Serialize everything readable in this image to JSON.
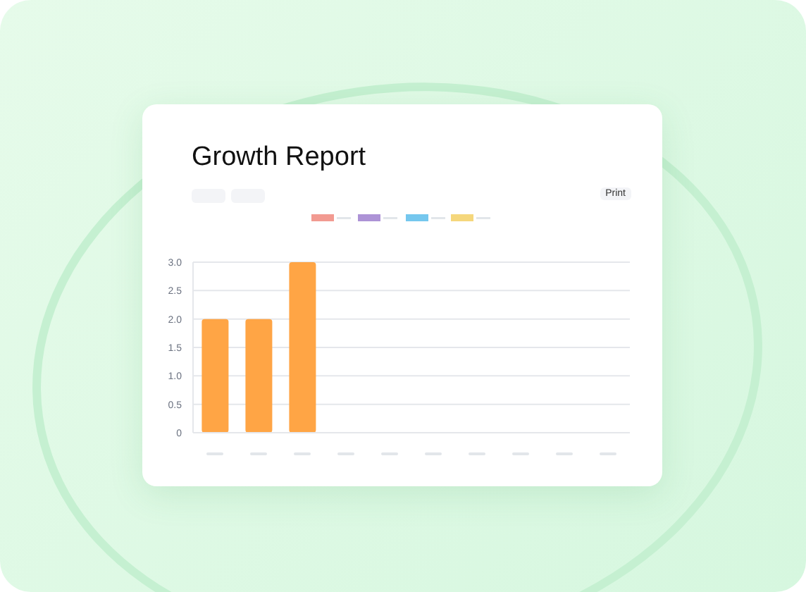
{
  "chart_data": {
    "type": "bar",
    "title": "Growth Report",
    "annotations": [
      "Print"
    ],
    "categories": [
      null,
      null,
      null,
      null,
      null,
      null,
      null,
      null,
      null,
      null
    ],
    "values": [
      2,
      2,
      3,
      null,
      null,
      null,
      null,
      null,
      null,
      null
    ],
    "color": "#ffa545",
    "ylim": [
      0,
      3
    ],
    "yticks": [
      0,
      {
        "value": 0.5,
        "label": "0.5"
      },
      {
        "value": 1,
        "label": "1.0"
      },
      {
        "value": 1.5,
        "label": "1.5"
      },
      {
        "value": 2,
        "label": "2.0"
      },
      {
        "value": 2.5,
        "label": "2.5"
      },
      {
        "value": 3,
        "label": "3.0"
      }
    ],
    "grid": "y"
  }
}
